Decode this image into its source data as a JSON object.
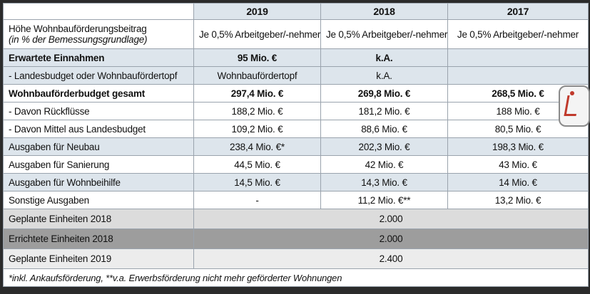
{
  "header": {
    "col0": "",
    "years": [
      "2019",
      "2018",
      "2017"
    ]
  },
  "rows": [
    {
      "label": "Höhe Wohnbauförderungsbeitrag",
      "sublabel": "(in % der Bemessungsgrundlage)",
      "values": [
        "Je 0,5% Arbeitgeber/-nehmer",
        "Je 0,5% Arbeitgeber/-nehmer",
        "Je 0,5% Arbeitgeber/-nehmer"
      ]
    },
    {
      "label": "Erwartete Einnahmen",
      "values": [
        "95 Mio. €",
        "k.A.",
        ""
      ]
    },
    {
      "label": "- Landesbudget oder Wohnbaufördertopf",
      "values": [
        "Wohnbaufördertopf",
        "k.A.",
        ""
      ]
    },
    {
      "label": "Wohnbauförderbudget gesamt",
      "values": [
        "297,4 Mio. €",
        "269,8 Mio. €",
        "268,5 Mio. €"
      ]
    },
    {
      "label": "- Davon Rückflüsse",
      "values": [
        "188,2 Mio. €",
        "181,2 Mio. €",
        "188 Mio. €"
      ]
    },
    {
      "label": "- Davon Mittel aus Landesbudget",
      "values": [
        "109,2 Mio. €",
        "88,6 Mio. €",
        "80,5 Mio. €"
      ]
    },
    {
      "label": "Ausgaben für Neubau",
      "values": [
        "238,4 Mio. €*",
        "202,3 Mio. €",
        "198,3 Mio. €"
      ]
    },
    {
      "label": "Ausgaben für Sanierung",
      "values": [
        "44,5 Mio. €",
        "42 Mio. €",
        "43 Mio. €"
      ]
    },
    {
      "label": "Ausgaben für Wohnbeihilfe",
      "values": [
        "14,5 Mio. €",
        "14,3 Mio. €",
        "14 Mio. €"
      ]
    },
    {
      "label": "Sonstige Ausgaben",
      "values": [
        "-",
        "11,2 Mio. €**",
        "13,2 Mio. €"
      ]
    }
  ],
  "units": [
    {
      "label": "Geplante Einheiten 2018",
      "value": "2.000"
    },
    {
      "label": "Errichtete Einheiten 2018",
      "value": "2.000"
    },
    {
      "label": "Geplante Einheiten 2019",
      "value": "2.400"
    }
  ],
  "footnote": "*inkl. Ankaufsförderung, **v.a. Erwerbsförderung nicht mehr geförderter Wohnungen",
  "colors": {
    "light_blue": "#dde5ec",
    "gray": "#dcdcdc",
    "dark_gray": "#9d9d9d",
    "border": "#9aa3ad"
  },
  "icons": {
    "seal": "regional-seal-icon"
  }
}
